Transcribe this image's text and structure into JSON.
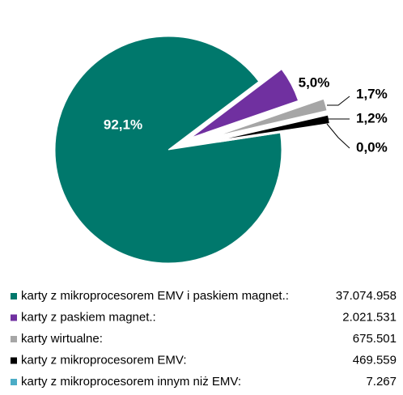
{
  "chart_data": {
    "type": "pie",
    "categories": [
      "karty z mikroprocesorem EMV i paskiem magnet.:",
      "karty z paskiem magnet.:",
      "karty wirtualne:",
      "karty z mikroprocesorem EMV:",
      "karty z mikroprocesorem innym niż EMV:"
    ],
    "values": [
      92.1,
      5.0,
      1.7,
      1.2,
      0.0
    ],
    "value_labels": [
      "92,1%",
      "5,0%",
      "1,7%",
      "1,2%",
      "0,0%"
    ],
    "counts": [
      "37.074.958",
      "2.021.531",
      "675.501",
      "469.559",
      "7.267"
    ],
    "colors": [
      "#00786c",
      "#7030a0",
      "#a6a6a6",
      "#000000",
      "#4bacc6"
    ]
  }
}
